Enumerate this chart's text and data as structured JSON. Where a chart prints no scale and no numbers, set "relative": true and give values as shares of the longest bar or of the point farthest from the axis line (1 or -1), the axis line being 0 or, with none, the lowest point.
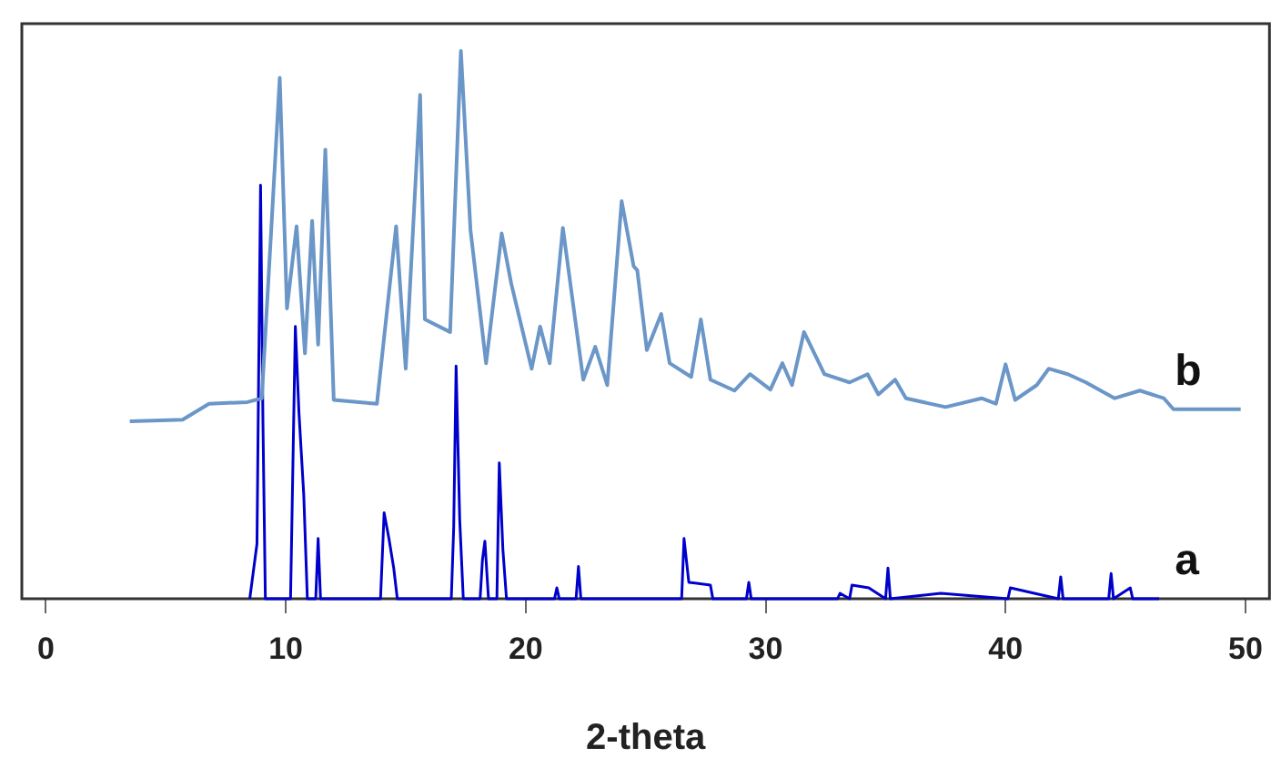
{
  "chart_data": {
    "type": "line",
    "xlabel": "2-theta",
    "relative": true,
    "xlim": [
      -1,
      51
    ],
    "xticks": [
      0,
      10,
      20,
      30,
      40,
      50
    ],
    "tick_labels": "x",
    "grid": false,
    "legend": false,
    "marker": "none",
    "line_style": "solid",
    "series": [
      {
        "name": "b",
        "color": "#6b96c8",
        "x": [
          3.5,
          5.7,
          6.8,
          8.4,
          9.0,
          9.75,
          10.05,
          10.45,
          10.8,
          11.1,
          11.35,
          11.65,
          12.0,
          13.8,
          14.6,
          15.0,
          15.6,
          15.8,
          16.85,
          17.3,
          17.7,
          18.35,
          19.0,
          19.4,
          20.25,
          20.6,
          21.0,
          21.55,
          22.4,
          22.9,
          23.4,
          24.0,
          24.5,
          24.65,
          25.05,
          25.65,
          26.0,
          26.9,
          27.3,
          27.7,
          28.7,
          29.35,
          30.2,
          30.7,
          31.1,
          31.6,
          32.45,
          33.5,
          34.25,
          34.7,
          35.4,
          35.85,
          37.5,
          39.0,
          39.6,
          40.0,
          40.4,
          41.3,
          41.8,
          42.6,
          43.35,
          44.55,
          45.6,
          46.6,
          47.0,
          49.8
        ],
        "values": [
          0.324,
          0.327,
          0.356,
          0.359,
          0.366,
          0.951,
          0.53,
          0.68,
          0.448,
          0.69,
          0.464,
          0.82,
          0.363,
          0.356,
          0.68,
          0.42,
          0.92,
          0.51,
          0.487,
          1.0,
          0.673,
          0.43,
          0.667,
          0.575,
          0.42,
          0.497,
          0.43,
          0.677,
          0.4,
          0.46,
          0.39,
          0.726,
          0.607,
          0.6,
          0.454,
          0.52,
          0.43,
          0.405,
          0.51,
          0.4,
          0.38,
          0.41,
          0.382,
          0.43,
          0.39,
          0.487,
          0.41,
          0.395,
          0.41,
          0.373,
          0.4,
          0.366,
          0.35,
          0.366,
          0.356,
          0.428,
          0.363,
          0.39,
          0.42,
          0.41,
          0.395,
          0.366,
          0.38,
          0.366,
          0.346,
          0.346
        ]
      },
      {
        "name": "a",
        "color": "#0000cc",
        "x": [
          8.5,
          8.8,
          8.95,
          9.05,
          9.15,
          10.2,
          10.4,
          10.55,
          10.75,
          10.9,
          11.25,
          11.35,
          11.45,
          13.95,
          14.1,
          14.3,
          14.5,
          14.65,
          16.9,
          17.0,
          17.1,
          17.25,
          17.4,
          18.1,
          18.2,
          18.3,
          18.45,
          18.8,
          18.9,
          19.05,
          19.2,
          21.2,
          21.3,
          21.4,
          22.1,
          22.2,
          22.3,
          26.5,
          26.6,
          26.8,
          27.7,
          27.8,
          29.2,
          29.3,
          29.4,
          33.0,
          33.1,
          33.5,
          33.6,
          34.3,
          35.0,
          35.1,
          35.2,
          37.3,
          40.1,
          40.2,
          42.2,
          42.3,
          42.4,
          44.3,
          44.4,
          44.5,
          45.2,
          45.3,
          46.4
        ],
        "values": [
          0,
          0.1,
          0.755,
          0.32,
          0,
          0,
          0.497,
          0.34,
          0.19,
          0,
          0,
          0.11,
          0,
          0,
          0.157,
          0.11,
          0.056,
          0,
          0,
          0.13,
          0.425,
          0.145,
          0,
          0,
          0.072,
          0.105,
          0,
          0,
          0.248,
          0.09,
          0,
          0,
          0.02,
          0,
          0,
          0.059,
          0,
          0,
          0.11,
          0.03,
          0.025,
          0,
          0,
          0.03,
          0,
          0,
          0.01,
          0,
          0.025,
          0.02,
          0,
          0.056,
          0,
          0.01,
          0,
          0.02,
          0,
          0.04,
          0,
          0,
          0.046,
          0,
          0.02,
          0,
          0
        ]
      }
    ]
  }
}
